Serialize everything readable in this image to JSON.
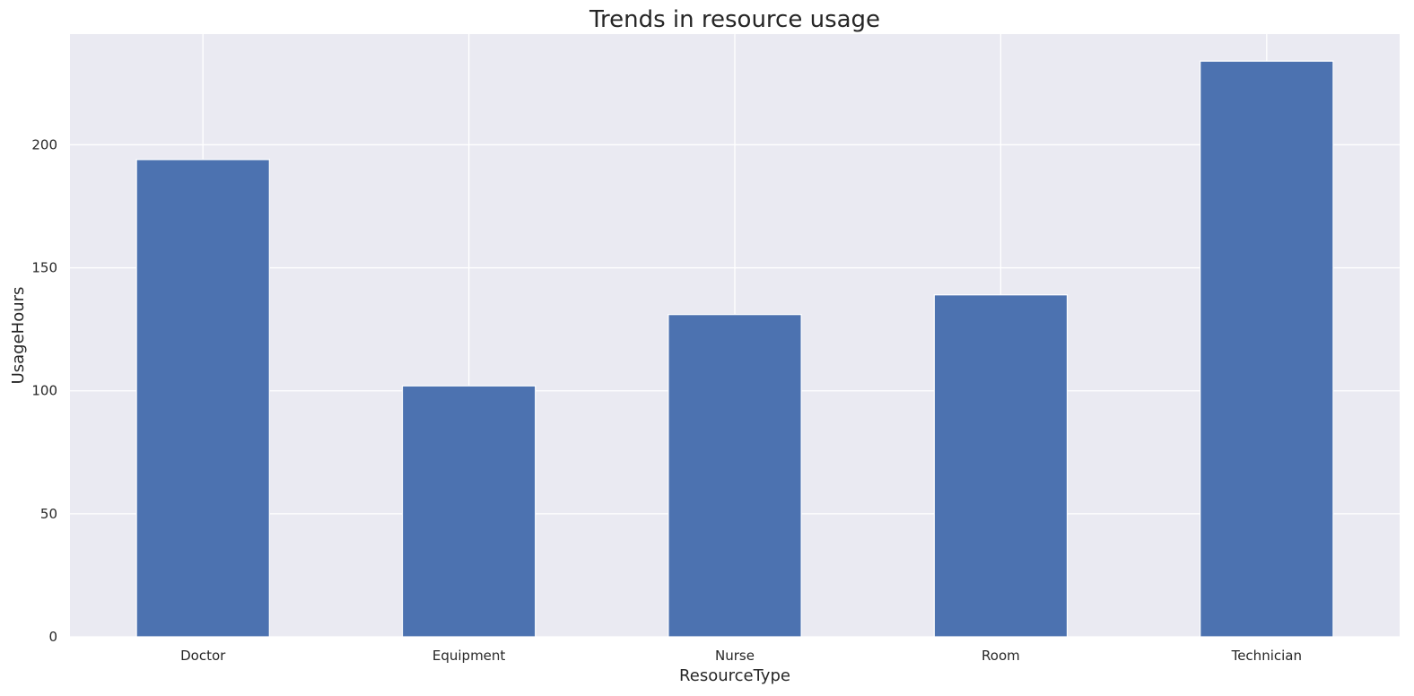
{
  "chart_data": {
    "type": "bar",
    "title": "Trends in resource usage",
    "xlabel": "ResourceType",
    "ylabel": "UsageHours",
    "categories": [
      "Doctor",
      "Equipment",
      "Nurse",
      "Room",
      "Technician"
    ],
    "values": [
      194,
      102,
      131,
      139,
      234
    ],
    "ylim": [
      0,
      245
    ],
    "yticks": [
      0,
      50,
      100,
      150,
      200
    ],
    "grid": true,
    "colors": {
      "bar": "#4c72b0",
      "plot_background": "#eaeaf2",
      "grid": "#ffffff",
      "text": "#262626"
    }
  }
}
